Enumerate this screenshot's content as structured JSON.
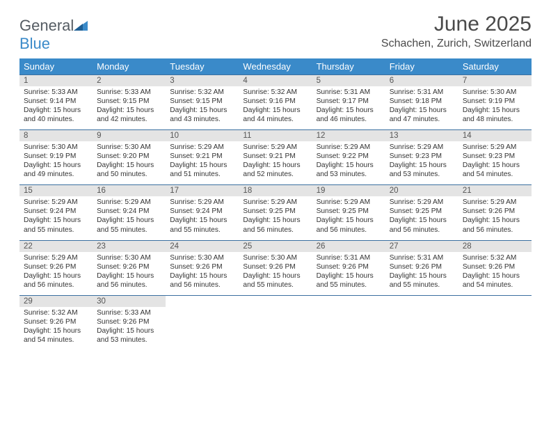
{
  "logo": {
    "general": "General",
    "blue": "Blue"
  },
  "title": "June 2025",
  "location": "Schachen, Zurich, Switzerland",
  "colors": {
    "header_bg": "#3a8ac9",
    "row_divider": "#3a6fa0",
    "daynum_bg": "#e4e4e4",
    "text": "#333333",
    "logo_gray": "#555c63",
    "logo_blue": "#3a8ac9",
    "background": "#ffffff"
  },
  "typography": {
    "title_fontsize": 30,
    "location_fontsize": 16,
    "header_fontsize": 13,
    "daynum_fontsize": 11.5,
    "body_fontsize": 10.2
  },
  "layout": {
    "columns": 7,
    "rows": 5,
    "first_day_column": 0,
    "days_in_month": 30
  },
  "weekdays": [
    "Sunday",
    "Monday",
    "Tuesday",
    "Wednesday",
    "Thursday",
    "Friday",
    "Saturday"
  ],
  "days": [
    {
      "n": 1,
      "sr": "5:33 AM",
      "ss": "9:14 PM",
      "dh": 15,
      "dm": 40
    },
    {
      "n": 2,
      "sr": "5:33 AM",
      "ss": "9:15 PM",
      "dh": 15,
      "dm": 42
    },
    {
      "n": 3,
      "sr": "5:32 AM",
      "ss": "9:15 PM",
      "dh": 15,
      "dm": 43
    },
    {
      "n": 4,
      "sr": "5:32 AM",
      "ss": "9:16 PM",
      "dh": 15,
      "dm": 44
    },
    {
      "n": 5,
      "sr": "5:31 AM",
      "ss": "9:17 PM",
      "dh": 15,
      "dm": 46
    },
    {
      "n": 6,
      "sr": "5:31 AM",
      "ss": "9:18 PM",
      "dh": 15,
      "dm": 47
    },
    {
      "n": 7,
      "sr": "5:30 AM",
      "ss": "9:19 PM",
      "dh": 15,
      "dm": 48
    },
    {
      "n": 8,
      "sr": "5:30 AM",
      "ss": "9:19 PM",
      "dh": 15,
      "dm": 49
    },
    {
      "n": 9,
      "sr": "5:30 AM",
      "ss": "9:20 PM",
      "dh": 15,
      "dm": 50
    },
    {
      "n": 10,
      "sr": "5:29 AM",
      "ss": "9:21 PM",
      "dh": 15,
      "dm": 51
    },
    {
      "n": 11,
      "sr": "5:29 AM",
      "ss": "9:21 PM",
      "dh": 15,
      "dm": 52
    },
    {
      "n": 12,
      "sr": "5:29 AM",
      "ss": "9:22 PM",
      "dh": 15,
      "dm": 53
    },
    {
      "n": 13,
      "sr": "5:29 AM",
      "ss": "9:23 PM",
      "dh": 15,
      "dm": 53
    },
    {
      "n": 14,
      "sr": "5:29 AM",
      "ss": "9:23 PM",
      "dh": 15,
      "dm": 54
    },
    {
      "n": 15,
      "sr": "5:29 AM",
      "ss": "9:24 PM",
      "dh": 15,
      "dm": 55
    },
    {
      "n": 16,
      "sr": "5:29 AM",
      "ss": "9:24 PM",
      "dh": 15,
      "dm": 55
    },
    {
      "n": 17,
      "sr": "5:29 AM",
      "ss": "9:24 PM",
      "dh": 15,
      "dm": 55
    },
    {
      "n": 18,
      "sr": "5:29 AM",
      "ss": "9:25 PM",
      "dh": 15,
      "dm": 56
    },
    {
      "n": 19,
      "sr": "5:29 AM",
      "ss": "9:25 PM",
      "dh": 15,
      "dm": 56
    },
    {
      "n": 20,
      "sr": "5:29 AM",
      "ss": "9:25 PM",
      "dh": 15,
      "dm": 56
    },
    {
      "n": 21,
      "sr": "5:29 AM",
      "ss": "9:26 PM",
      "dh": 15,
      "dm": 56
    },
    {
      "n": 22,
      "sr": "5:29 AM",
      "ss": "9:26 PM",
      "dh": 15,
      "dm": 56
    },
    {
      "n": 23,
      "sr": "5:30 AM",
      "ss": "9:26 PM",
      "dh": 15,
      "dm": 56
    },
    {
      "n": 24,
      "sr": "5:30 AM",
      "ss": "9:26 PM",
      "dh": 15,
      "dm": 56
    },
    {
      "n": 25,
      "sr": "5:30 AM",
      "ss": "9:26 PM",
      "dh": 15,
      "dm": 55
    },
    {
      "n": 26,
      "sr": "5:31 AM",
      "ss": "9:26 PM",
      "dh": 15,
      "dm": 55
    },
    {
      "n": 27,
      "sr": "5:31 AM",
      "ss": "9:26 PM",
      "dh": 15,
      "dm": 55
    },
    {
      "n": 28,
      "sr": "5:32 AM",
      "ss": "9:26 PM",
      "dh": 15,
      "dm": 54
    },
    {
      "n": 29,
      "sr": "5:32 AM",
      "ss": "9:26 PM",
      "dh": 15,
      "dm": 54
    },
    {
      "n": 30,
      "sr": "5:33 AM",
      "ss": "9:26 PM",
      "dh": 15,
      "dm": 53
    }
  ],
  "labels": {
    "sunrise": "Sunrise:",
    "sunset": "Sunset:",
    "daylight_prefix": "Daylight:",
    "hours_word": "hours",
    "and_word": "and",
    "minutes_word": "minutes."
  }
}
